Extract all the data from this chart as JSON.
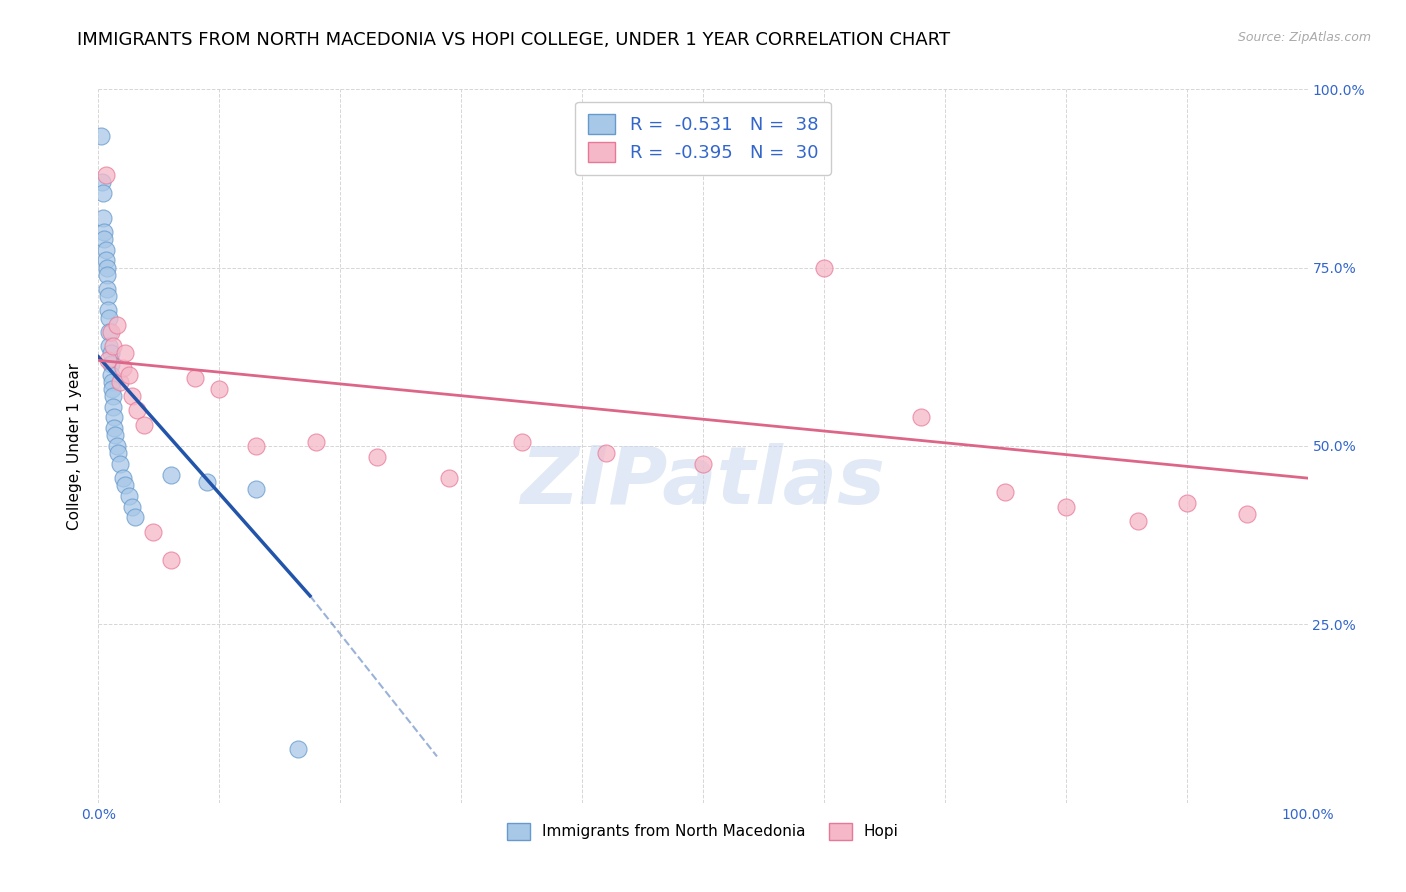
{
  "title": "IMMIGRANTS FROM NORTH MACEDONIA VS HOPI COLLEGE, UNDER 1 YEAR CORRELATION CHART",
  "source": "Source: ZipAtlas.com",
  "ylabel": "College, Under 1 year",
  "xlim": [
    0,
    1.0
  ],
  "ylim": [
    0,
    1.0
  ],
  "legend_label1": "Immigrants from North Macedonia",
  "legend_label2": "Hopi",
  "R1": "-0.531",
  "N1": "38",
  "R2": "-0.395",
  "N2": "30",
  "color_blue_fill": "#a8c8e8",
  "color_pink_fill": "#f4b8c8",
  "color_blue_edge": "#6699cc",
  "color_pink_edge": "#e87898",
  "color_blue_line": "#2255aa",
  "color_pink_line": "#dd6688",
  "blue_scatter_x": [
    0.002,
    0.003,
    0.004,
    0.004,
    0.005,
    0.005,
    0.006,
    0.006,
    0.007,
    0.007,
    0.007,
    0.008,
    0.008,
    0.009,
    0.009,
    0.009,
    0.01,
    0.01,
    0.01,
    0.011,
    0.011,
    0.012,
    0.012,
    0.013,
    0.013,
    0.014,
    0.015,
    0.016,
    0.018,
    0.02,
    0.022,
    0.025,
    0.028,
    0.03,
    0.06,
    0.09,
    0.13,
    0.165
  ],
  "blue_scatter_y": [
    0.935,
    0.87,
    0.855,
    0.82,
    0.8,
    0.79,
    0.775,
    0.76,
    0.75,
    0.74,
    0.72,
    0.71,
    0.69,
    0.68,
    0.66,
    0.64,
    0.63,
    0.615,
    0.6,
    0.59,
    0.58,
    0.57,
    0.555,
    0.54,
    0.525,
    0.515,
    0.5,
    0.49,
    0.475,
    0.455,
    0.445,
    0.43,
    0.415,
    0.4,
    0.46,
    0.45,
    0.44,
    0.075
  ],
  "pink_scatter_x": [
    0.006,
    0.008,
    0.01,
    0.012,
    0.015,
    0.018,
    0.02,
    0.022,
    0.025,
    0.028,
    0.032,
    0.038,
    0.045,
    0.06,
    0.08,
    0.1,
    0.13,
    0.18,
    0.23,
    0.29,
    0.35,
    0.42,
    0.5,
    0.6,
    0.68,
    0.75,
    0.8,
    0.86,
    0.9,
    0.95
  ],
  "pink_scatter_y": [
    0.88,
    0.62,
    0.66,
    0.64,
    0.67,
    0.59,
    0.61,
    0.63,
    0.6,
    0.57,
    0.55,
    0.53,
    0.38,
    0.34,
    0.595,
    0.58,
    0.5,
    0.505,
    0.485,
    0.455,
    0.505,
    0.49,
    0.475,
    0.75,
    0.54,
    0.435,
    0.415,
    0.395,
    0.42,
    0.405
  ],
  "blue_line_start_x": 0.0,
  "blue_line_start_y": 0.625,
  "blue_line_solid_end_x": 0.175,
  "blue_line_solid_end_y": 0.29,
  "blue_line_dash_end_x": 0.28,
  "blue_line_dash_end_y": 0.065,
  "pink_line_start_x": 0.0,
  "pink_line_start_y": 0.62,
  "pink_line_end_x": 1.0,
  "pink_line_end_y": 0.455,
  "watermark": "ZIPatlas",
  "title_fontsize": 13,
  "axis_label_fontsize": 11,
  "tick_fontsize": 10,
  "legend_inner_fontsize": 13
}
